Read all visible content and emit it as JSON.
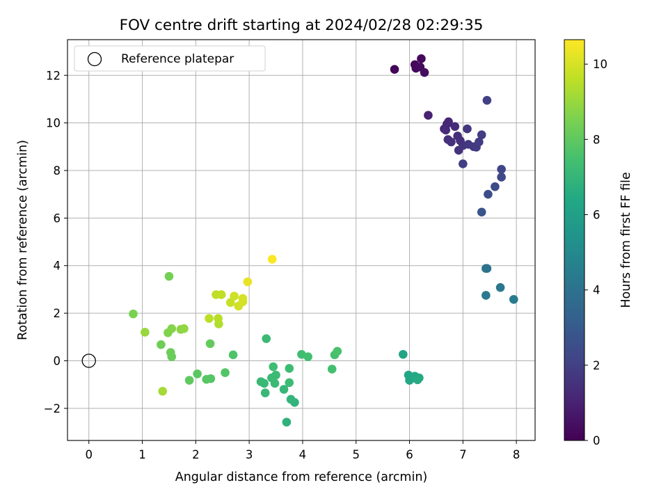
{
  "chart_data": {
    "type": "scatter",
    "title": "FOV centre drift starting at 2024/02/28 02:29:35",
    "xlabel": "Angular distance from reference (arcmin)",
    "ylabel": "Rotation from reference (arcmin)",
    "xlim": [
      -0.4,
      8.35
    ],
    "ylim": [
      -3.35,
      13.5
    ],
    "xticks": [
      "0",
      "1",
      "2",
      "3",
      "4",
      "5",
      "6",
      "7",
      "8"
    ],
    "yticks": [
      "−2",
      "0",
      "2",
      "4",
      "6",
      "8",
      "10",
      "12"
    ],
    "grid": true,
    "legend": {
      "placement": "top-left",
      "entries": [
        "Reference platepar"
      ]
    },
    "reference_point": {
      "x": 0,
      "y": 0,
      "marker": "open-circle"
    },
    "colorbar": {
      "label": "Hours from first FF file",
      "colormap": "viridis",
      "range": [
        0,
        10.65
      ],
      "ticks": [
        "0",
        "2",
        "4",
        "6",
        "8",
        "10"
      ]
    },
    "points": [
      {
        "x": 5.72,
        "y": 12.25,
        "c": 0.1
      },
      {
        "x": 6.1,
        "y": 12.45,
        "c": 0.15
      },
      {
        "x": 6.12,
        "y": 12.3,
        "c": 0.2
      },
      {
        "x": 6.22,
        "y": 12.7,
        "c": 0.25
      },
      {
        "x": 6.2,
        "y": 12.35,
        "c": 0.3
      },
      {
        "x": 6.28,
        "y": 12.12,
        "c": 0.35
      },
      {
        "x": 6.35,
        "y": 10.32,
        "c": 1.0
      },
      {
        "x": 6.65,
        "y": 9.75,
        "c": 1.1
      },
      {
        "x": 6.7,
        "y": 9.95,
        "c": 1.15
      },
      {
        "x": 6.73,
        "y": 10.05,
        "c": 1.2
      },
      {
        "x": 6.68,
        "y": 9.7,
        "c": 1.25
      },
      {
        "x": 6.85,
        "y": 9.85,
        "c": 1.3
      },
      {
        "x": 6.9,
        "y": 9.45,
        "c": 1.35
      },
      {
        "x": 6.95,
        "y": 9.25,
        "c": 1.4
      },
      {
        "x": 6.72,
        "y": 9.3,
        "c": 1.45
      },
      {
        "x": 6.78,
        "y": 9.2,
        "c": 1.5
      },
      {
        "x": 6.92,
        "y": 8.85,
        "c": 1.55
      },
      {
        "x": 7.0,
        "y": 9.05,
        "c": 1.6
      },
      {
        "x": 7.08,
        "y": 9.75,
        "c": 1.65
      },
      {
        "x": 7.1,
        "y": 9.1,
        "c": 1.7
      },
      {
        "x": 7.2,
        "y": 9.0,
        "c": 1.75
      },
      {
        "x": 7.25,
        "y": 8.98,
        "c": 1.8
      },
      {
        "x": 7.3,
        "y": 9.2,
        "c": 1.85
      },
      {
        "x": 7.35,
        "y": 9.5,
        "c": 1.9
      },
      {
        "x": 7.0,
        "y": 8.28,
        "c": 1.95
      },
      {
        "x": 7.45,
        "y": 10.95,
        "c": 2.0
      },
      {
        "x": 7.72,
        "y": 8.05,
        "c": 2.2
      },
      {
        "x": 7.72,
        "y": 7.72,
        "c": 2.3
      },
      {
        "x": 7.6,
        "y": 7.32,
        "c": 2.4
      },
      {
        "x": 7.47,
        "y": 7.0,
        "c": 2.5
      },
      {
        "x": 7.35,
        "y": 6.25,
        "c": 2.8
      },
      {
        "x": 7.43,
        "y": 3.88,
        "c": 4.0
      },
      {
        "x": 7.45,
        "y": 3.88,
        "c": 4.05
      },
      {
        "x": 7.7,
        "y": 3.08,
        "c": 4.2
      },
      {
        "x": 7.43,
        "y": 2.75,
        "c": 4.3
      },
      {
        "x": 7.95,
        "y": 2.58,
        "c": 4.4
      },
      {
        "x": 5.88,
        "y": 0.27,
        "c": 6.2
      },
      {
        "x": 5.98,
        "y": -0.6,
        "c": 6.3
      },
      {
        "x": 6.0,
        "y": -0.82,
        "c": 6.35
      },
      {
        "x": 6.1,
        "y": -0.65,
        "c": 6.4
      },
      {
        "x": 6.18,
        "y": -0.72,
        "c": 6.45
      },
      {
        "x": 6.15,
        "y": -0.8,
        "c": 6.5
      },
      {
        "x": 3.7,
        "y": -2.58,
        "c": 6.8
      },
      {
        "x": 3.85,
        "y": -1.75,
        "c": 6.9
      },
      {
        "x": 3.78,
        "y": -1.62,
        "c": 7.0
      },
      {
        "x": 3.65,
        "y": -1.2,
        "c": 7.05
      },
      {
        "x": 3.3,
        "y": -1.35,
        "c": 7.1
      },
      {
        "x": 3.28,
        "y": -0.95,
        "c": 7.12
      },
      {
        "x": 3.22,
        "y": -0.88,
        "c": 7.15
      },
      {
        "x": 3.42,
        "y": -0.72,
        "c": 7.18
      },
      {
        "x": 3.48,
        "y": -0.95,
        "c": 7.2
      },
      {
        "x": 3.5,
        "y": -0.6,
        "c": 7.22
      },
      {
        "x": 3.75,
        "y": -0.92,
        "c": 7.25
      },
      {
        "x": 3.75,
        "y": -0.32,
        "c": 7.28
      },
      {
        "x": 3.45,
        "y": -0.25,
        "c": 7.3
      },
      {
        "x": 3.32,
        "y": 0.93,
        "c": 7.2
      },
      {
        "x": 3.98,
        "y": 0.27,
        "c": 7.35
      },
      {
        "x": 4.1,
        "y": 0.17,
        "c": 7.4
      },
      {
        "x": 4.55,
        "y": -0.35,
        "c": 7.45
      },
      {
        "x": 4.6,
        "y": 0.25,
        "c": 7.5
      },
      {
        "x": 4.65,
        "y": 0.4,
        "c": 7.55
      },
      {
        "x": 2.7,
        "y": 0.25,
        "c": 7.7
      },
      {
        "x": 2.55,
        "y": -0.5,
        "c": 7.75
      },
      {
        "x": 2.28,
        "y": -0.75,
        "c": 7.8
      },
      {
        "x": 2.2,
        "y": -0.78,
        "c": 7.85
      },
      {
        "x": 2.03,
        "y": -0.55,
        "c": 7.9
      },
      {
        "x": 1.88,
        "y": -0.82,
        "c": 8.0
      },
      {
        "x": 2.27,
        "y": 0.72,
        "c": 8.1
      },
      {
        "x": 1.55,
        "y": 0.17,
        "c": 8.2
      },
      {
        "x": 1.53,
        "y": 0.35,
        "c": 8.25
      },
      {
        "x": 1.35,
        "y": 0.68,
        "c": 8.3
      },
      {
        "x": 1.5,
        "y": 3.55,
        "c": 8.4
      },
      {
        "x": 0.83,
        "y": 1.97,
        "c": 8.5
      },
      {
        "x": 1.48,
        "y": 1.18,
        "c": 8.6
      },
      {
        "x": 1.55,
        "y": 1.35,
        "c": 8.7
      },
      {
        "x": 1.72,
        "y": 1.32,
        "c": 8.8
      },
      {
        "x": 1.78,
        "y": 1.35,
        "c": 8.9
      },
      {
        "x": 1.05,
        "y": 1.2,
        "c": 9.0
      },
      {
        "x": 1.38,
        "y": -1.28,
        "c": 9.2
      },
      {
        "x": 2.43,
        "y": 1.55,
        "c": 9.4
      },
      {
        "x": 2.42,
        "y": 1.78,
        "c": 9.5
      },
      {
        "x": 2.25,
        "y": 1.78,
        "c": 9.55
      },
      {
        "x": 2.38,
        "y": 2.78,
        "c": 9.6
      },
      {
        "x": 2.48,
        "y": 2.78,
        "c": 9.65
      },
      {
        "x": 2.65,
        "y": 2.45,
        "c": 9.75
      },
      {
        "x": 2.72,
        "y": 2.72,
        "c": 9.85
      },
      {
        "x": 2.8,
        "y": 2.3,
        "c": 9.9
      },
      {
        "x": 2.88,
        "y": 2.48,
        "c": 9.95
      },
      {
        "x": 2.88,
        "y": 2.62,
        "c": 10.0
      },
      {
        "x": 2.97,
        "y": 3.32,
        "c": 10.3
      },
      {
        "x": 3.43,
        "y": 4.27,
        "c": 10.6
      }
    ]
  }
}
